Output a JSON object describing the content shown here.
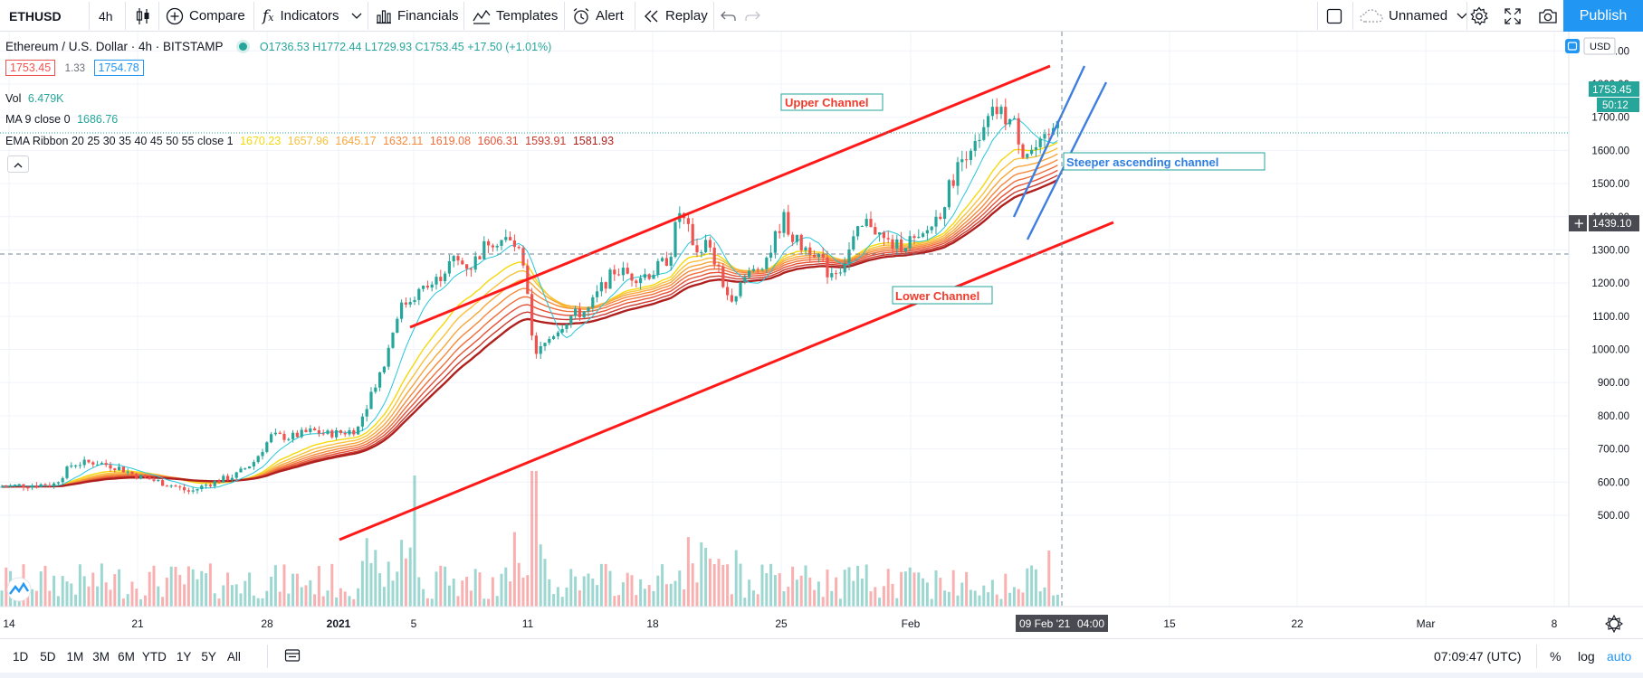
{
  "toolbar": {
    "symbol": "ETHUSD",
    "interval": "4h",
    "compare": "Compare",
    "indicators": "Indicators",
    "financials": "Financials",
    "templates": "Templates",
    "alert": "Alert",
    "replay": "Replay",
    "layout_name": "Unnamed",
    "publish": "Publish"
  },
  "legend": {
    "title": "Ethereum / U.S. Dollar · 4h · BITSTAMP",
    "ohlc": "O1736.53 H1772.44 L1729.93 C1753.45 +17.50 (+1.01%)",
    "bid": "1753.45",
    "spread": "1.33",
    "ask": "1754.78",
    "vol_label": "Vol",
    "vol_value": "6.479K",
    "ma_label": "MA 9 close 0",
    "ma_value": "1686.76",
    "ema_label": "EMA Ribbon 20 25 30 35 40 45 50 55 close 1",
    "ema_values": [
      "1670.23",
      "1657.96",
      "1645.17",
      "1632.11",
      "1619.08",
      "1606.31",
      "1593.91",
      "1581.93"
    ],
    "ema_colors": [
      "#f5d90a",
      "#f9c13c",
      "#f7a63b",
      "#f58a3c",
      "#ef6e3a",
      "#e55236",
      "#cc3a2e",
      "#b0201e"
    ]
  },
  "price_axis": {
    "currency": "USD",
    "labels": [
      "1900.00",
      "1800.00",
      "1700.00",
      "1600.00",
      "1500.00",
      "1400.00",
      "1300.00",
      "1200.00",
      "1100.00",
      "1000.00",
      "900.00",
      "800.00",
      "700.00",
      "600.00",
      "500.00"
    ],
    "last_price": "1753.45",
    "countdown": "50:12",
    "crosshair_price": "1439.10"
  },
  "time_axis": {
    "labels": [
      "14",
      "21",
      "28",
      "2021",
      "5",
      "11",
      "18",
      "25",
      "Feb",
      "15",
      "22",
      "Mar",
      "8"
    ],
    "crosshair_date": "09 Feb '21",
    "crosshair_time": "04:00"
  },
  "annotations": {
    "upper": "Upper Channel",
    "lower": "Lower Channel",
    "steeper": "Steeper ascending channel"
  },
  "bottombar": {
    "ranges": [
      "1D",
      "5D",
      "1M",
      "3M",
      "6M",
      "YTD",
      "1Y",
      "5Y",
      "All"
    ],
    "clock": "07:09:47 (UTC)",
    "percent": "%",
    "log": "log",
    "auto": "auto"
  },
  "colors": {
    "up": "#26a69a",
    "down": "#ef5350",
    "channel": "#ff1a1a",
    "steeper": "#3d7ee0",
    "accent": "#2196f3"
  }
}
